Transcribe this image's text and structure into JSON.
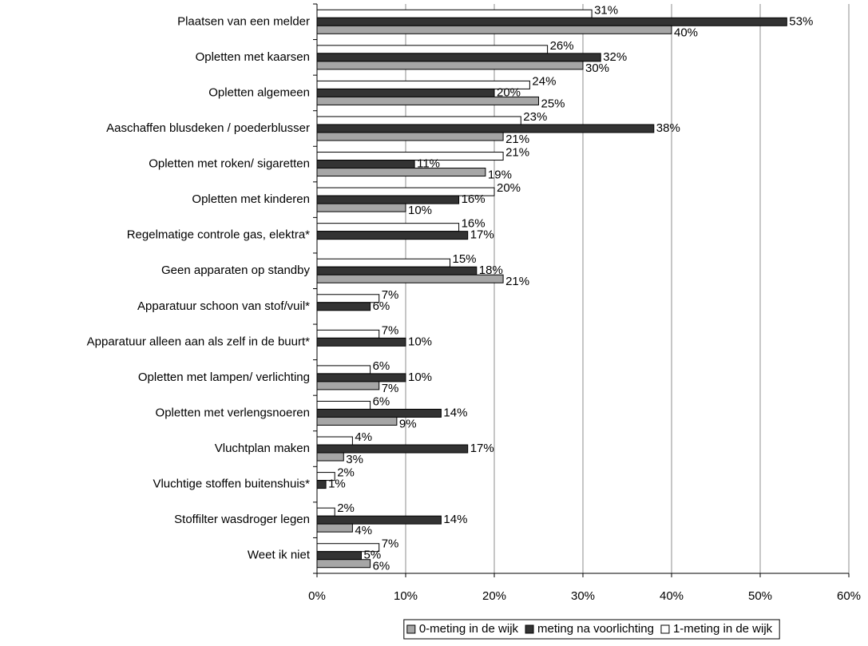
{
  "chart_data": {
    "type": "hbar",
    "categories": [
      "Plaatsen van een melder",
      "Opletten met kaarsen",
      "Opletten algemeen",
      "Aaschaffen blusdeken / poederblusser",
      "Opletten met roken/ sigaretten",
      "Opletten met kinderen",
      "Regelmatige controle gas, elektra*",
      "Geen apparaten op standby",
      "Apparatuur schoon van stof/vuil*",
      "Apparatuur alleen aan als zelf in de buurt*",
      "Opletten met lampen/ verlichting",
      "Opletten met verlengsnoeren",
      "Vluchtplan maken",
      "Vluchtige stoffen buitenshuis*",
      "Stoffilter wasdroger legen",
      "Weet ik niet"
    ],
    "series": [
      {
        "name": "0-meting in de wijk",
        "color": "#a6a6a6",
        "values": [
          40,
          30,
          25,
          21,
          19,
          10,
          null,
          21,
          null,
          null,
          7,
          9,
          3,
          null,
          4,
          6
        ],
        "value_labels": [
          "40%",
          "30%",
          "25%",
          "21%",
          "19%",
          "10%",
          null,
          "21%",
          null,
          null,
          "7%",
          "9%",
          "3%",
          null,
          "4%",
          "6%"
        ]
      },
      {
        "name": "meting na voorlichting",
        "color": "#333333",
        "values": [
          53,
          32,
          20,
          38,
          11,
          16,
          17,
          18,
          6,
          10,
          10,
          14,
          17,
          1,
          14,
          5
        ],
        "value_labels": [
          "53%",
          "32%",
          "20%",
          "38%",
          "11%",
          "16%",
          "17%",
          "18%",
          "6%",
          "10%",
          "10%",
          "14%",
          "17%",
          "1%",
          "14%",
          "5%"
        ]
      },
      {
        "name": "1-meting in de wijk",
        "color": "#ffffff",
        "values": [
          31,
          26,
          24,
          23,
          21,
          20,
          16,
          15,
          7,
          7,
          6,
          6,
          4,
          2,
          2,
          7
        ],
        "value_labels": [
          "31%",
          "26%",
          "24%",
          "23%",
          "21%",
          "20%",
          "16%",
          "15%",
          "7%",
          "7%",
          "6%",
          "6%",
          "4%",
          "2%",
          "2%",
          "7%"
        ]
      }
    ],
    "xlim": [
      0,
      60
    ],
    "xticks": [
      {
        "value": 0,
        "label": "0%"
      },
      {
        "value": 10,
        "label": "10%"
      },
      {
        "value": 20,
        "label": "20%"
      },
      {
        "value": 30,
        "label": "30%"
      },
      {
        "value": 40,
        "label": "40%"
      },
      {
        "value": 50,
        "label": "50%"
      },
      {
        "value": 60,
        "label": "60%"
      }
    ],
    "grid": true,
    "legend": "bottom"
  }
}
